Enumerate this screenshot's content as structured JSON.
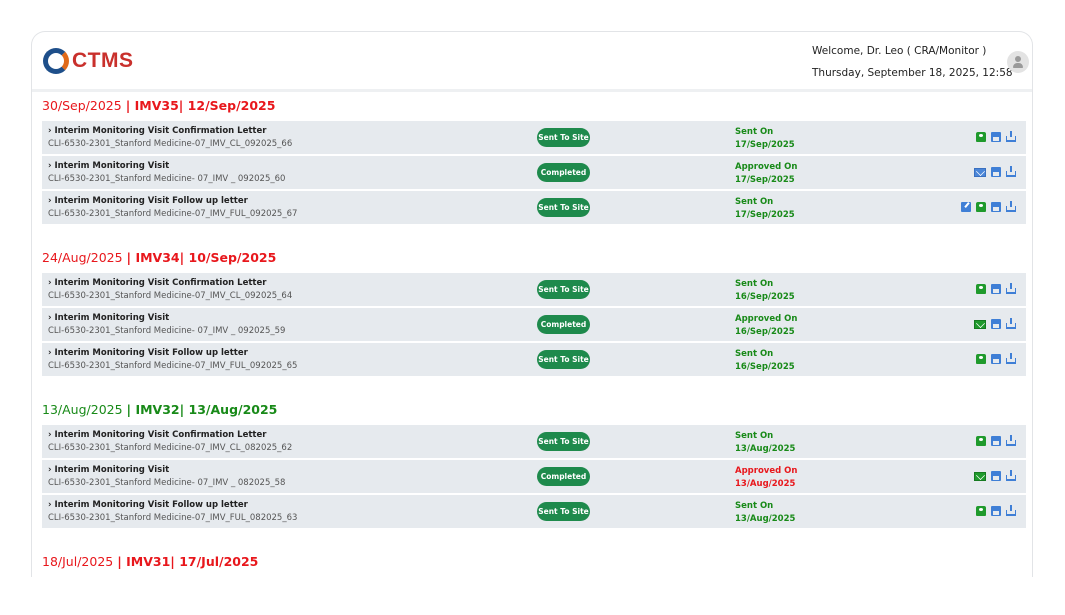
{
  "app": {
    "logo_text": "CTMS",
    "welcome": "Welcome, Dr. Leo ( CRA/Monitor )",
    "datetime": "Thursday, September 18, 2025, 12:58"
  },
  "colors": {
    "red": "#e8171c",
    "green": "#188a18",
    "badge": "#1e8a4c"
  },
  "sections": [
    {
      "date": "30/Sep/2025",
      "visit": "| IMV35| 12/Sep/2025",
      "color": "red",
      "rows": [
        {
          "name": "Interim Monitoring Visit Confirmation Letter",
          "code": "CLI-6530-2301_Stanford Medicine-07_IMV_CL_092025_66",
          "status": "Sent To Site",
          "action": "Sent On",
          "action_date": "17/Sep/2025",
          "action_color": "green",
          "icons": [
            "sent-mail-icon",
            "print-icon",
            "download-icon"
          ]
        },
        {
          "name": "Interim Monitoring Visit",
          "code": "CLI-6530-2301_Stanford Medicine- 07_IMV _ 092025_60",
          "status": "Completed",
          "action": "Approved On",
          "action_date": "17/Sep/2025",
          "action_color": "green",
          "icons": [
            "mail-blue-icon",
            "print-icon",
            "download-icon"
          ]
        },
        {
          "name": "Interim Monitoring Visit Follow up letter",
          "code": "CLI-6530-2301_Stanford Medicine-07_IMV_FUL_092025_67",
          "status": "Sent To Site",
          "action": "Sent On",
          "action_date": "17/Sep/2025",
          "action_color": "green",
          "icons": [
            "edit-icon",
            "sent-mail-icon",
            "print-icon",
            "download-icon"
          ]
        }
      ]
    },
    {
      "date": "24/Aug/2025",
      "visit": "| IMV34| 10/Sep/2025",
      "color": "red",
      "rows": [
        {
          "name": "Interim Monitoring Visit Confirmation Letter",
          "code": "CLI-6530-2301_Stanford Medicine-07_IMV_CL_092025_64",
          "status": "Sent To Site",
          "action": "Sent On",
          "action_date": "16/Sep/2025",
          "action_color": "green",
          "icons": [
            "sent-mail-icon",
            "print-icon",
            "download-icon"
          ]
        },
        {
          "name": "Interim Monitoring Visit",
          "code": "CLI-6530-2301_Stanford Medicine- 07_IMV _ 092025_59",
          "status": "Completed",
          "action": "Approved On",
          "action_date": "16/Sep/2025",
          "action_color": "green",
          "icons": [
            "mail-green-icon",
            "print-icon",
            "download-icon"
          ]
        },
        {
          "name": "Interim Monitoring Visit Follow up letter",
          "code": "CLI-6530-2301_Stanford Medicine-07_IMV_FUL_092025_65",
          "status": "Sent To Site",
          "action": "Sent On",
          "action_date": "16/Sep/2025",
          "action_color": "green",
          "icons": [
            "sent-mail-icon",
            "print-icon",
            "download-icon"
          ]
        }
      ]
    },
    {
      "date": "13/Aug/2025",
      "visit": "| IMV32| 13/Aug/2025",
      "color": "green",
      "rows": [
        {
          "name": "Interim Monitoring Visit Confirmation Letter",
          "code": "CLI-6530-2301_Stanford Medicine-07_IMV_CL_082025_62",
          "status": "Sent To Site",
          "action": "Sent On",
          "action_date": "13/Aug/2025",
          "action_color": "green",
          "icons": [
            "sent-mail-icon",
            "print-icon",
            "download-icon"
          ]
        },
        {
          "name": "Interim Monitoring Visit",
          "code": "CLI-6530-2301_Stanford Medicine- 07_IMV _ 082025_58",
          "status": "Completed",
          "action": "Approved On",
          "action_date": "13/Aug/2025",
          "action_color": "red",
          "icons": [
            "mail-green-icon",
            "print-icon",
            "download-icon"
          ]
        },
        {
          "name": "Interim Monitoring Visit Follow up letter",
          "code": "CLI-6530-2301_Stanford Medicine-07_IMV_FUL_082025_63",
          "status": "Sent To Site",
          "action": "Sent On",
          "action_date": "13/Aug/2025",
          "action_color": "green",
          "icons": [
            "sent-mail-icon",
            "print-icon",
            "download-icon"
          ]
        }
      ]
    },
    {
      "date": "18/Jul/2025",
      "visit": "| IMV31| 17/Jul/2025",
      "color": "red",
      "rows": []
    }
  ]
}
